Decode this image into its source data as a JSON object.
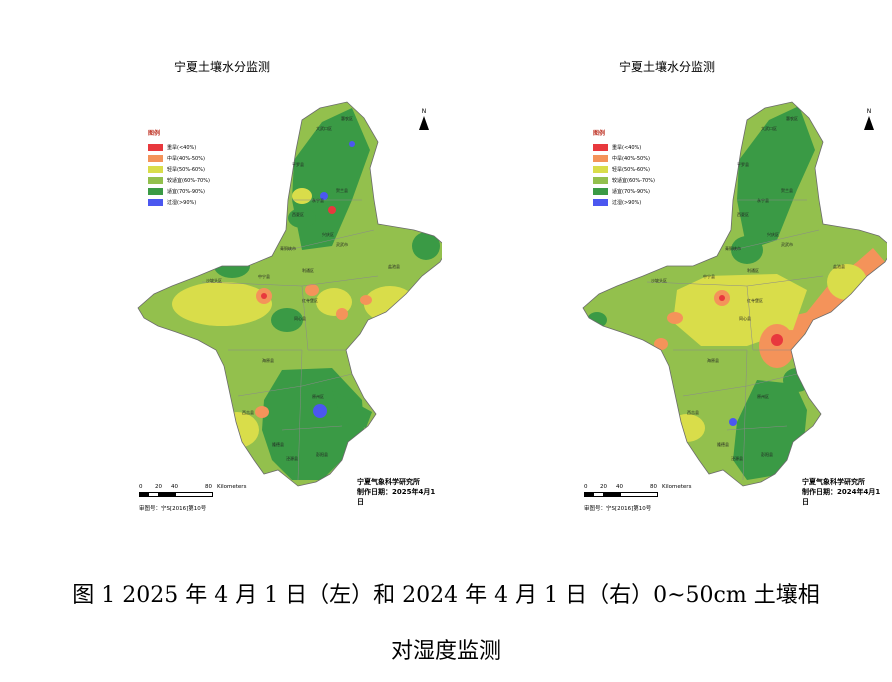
{
  "panels": [
    {
      "title": "宁夏土壤水分监测",
      "legend_title": "图例",
      "legend": [
        {
          "label": "重旱(<40%)",
          "color": "#e8383d"
        },
        {
          "label": "中旱(40%-50%)",
          "color": "#f4935a"
        },
        {
          "label": "轻旱(50%-60%)",
          "color": "#d9dd4a"
        },
        {
          "label": "较适宜(60%-70%)",
          "color": "#93c04d"
        },
        {
          "label": "适宜(70%-90%)",
          "color": "#3a9a45"
        },
        {
          "label": "过湿(>90%)",
          "color": "#4b57f0"
        }
      ],
      "north": "N",
      "scale": {
        "ticks": [
          "0",
          "20",
          "40",
          "80"
        ],
        "unit": "Kilometers"
      },
      "institute": "宁夏气象科学研究所",
      "date_label": "制作日期：2025年4月1日",
      "approval": "审图号：宁S[2016]第10号",
      "places": [
        "惠农区",
        "大武口区",
        "平罗县",
        "贺兰县",
        "永宁县",
        "西夏区",
        "兴庆区",
        "灵武市",
        "沙坡头区",
        "中宁县",
        "利通区",
        "盐池县",
        "红寺堡区",
        "同心县",
        "海原县",
        "原州区",
        "西吉县",
        "隆德县",
        "泾源县",
        "彭阳县",
        "青铜峡市"
      ]
    },
    {
      "title": "宁夏土壤水分监测",
      "legend_title": "图例",
      "legend": [
        {
          "label": "重旱(<40%)",
          "color": "#e8383d"
        },
        {
          "label": "中旱(40%-50%)",
          "color": "#f4935a"
        },
        {
          "label": "轻旱(50%-60%)",
          "color": "#d9dd4a"
        },
        {
          "label": "较适宜(60%-70%)",
          "color": "#93c04d"
        },
        {
          "label": "适宜(70%-90%)",
          "color": "#3a9a45"
        },
        {
          "label": "过湿(>90%)",
          "color": "#4b57f0"
        }
      ],
      "north": "N",
      "scale": {
        "ticks": [
          "0",
          "20",
          "40",
          "80"
        ],
        "unit": "Kilometers"
      },
      "institute": "宁夏气象科学研究所",
      "date_label": "制作日期：2024年4月1日",
      "approval": "审图号：宁S[2016]第10号",
      "places": [
        "惠农区",
        "大武口区",
        "平罗县",
        "贺兰县",
        "永宁县",
        "西夏区",
        "兴庆区",
        "灵武市",
        "沙坡头区",
        "中宁县",
        "利通区",
        "盐池县",
        "红寺堡区",
        "同心县",
        "海原县",
        "原州区",
        "西吉县",
        "隆德县",
        "泾源县",
        "彭阳县",
        "青铜峡市"
      ]
    }
  ],
  "caption": {
    "line1": "图 1 2025 年 4 月 1 日（左）和 2024 年 4 月 1 日（右）0~50cm 土壤相",
    "line2": "对湿度监测"
  }
}
